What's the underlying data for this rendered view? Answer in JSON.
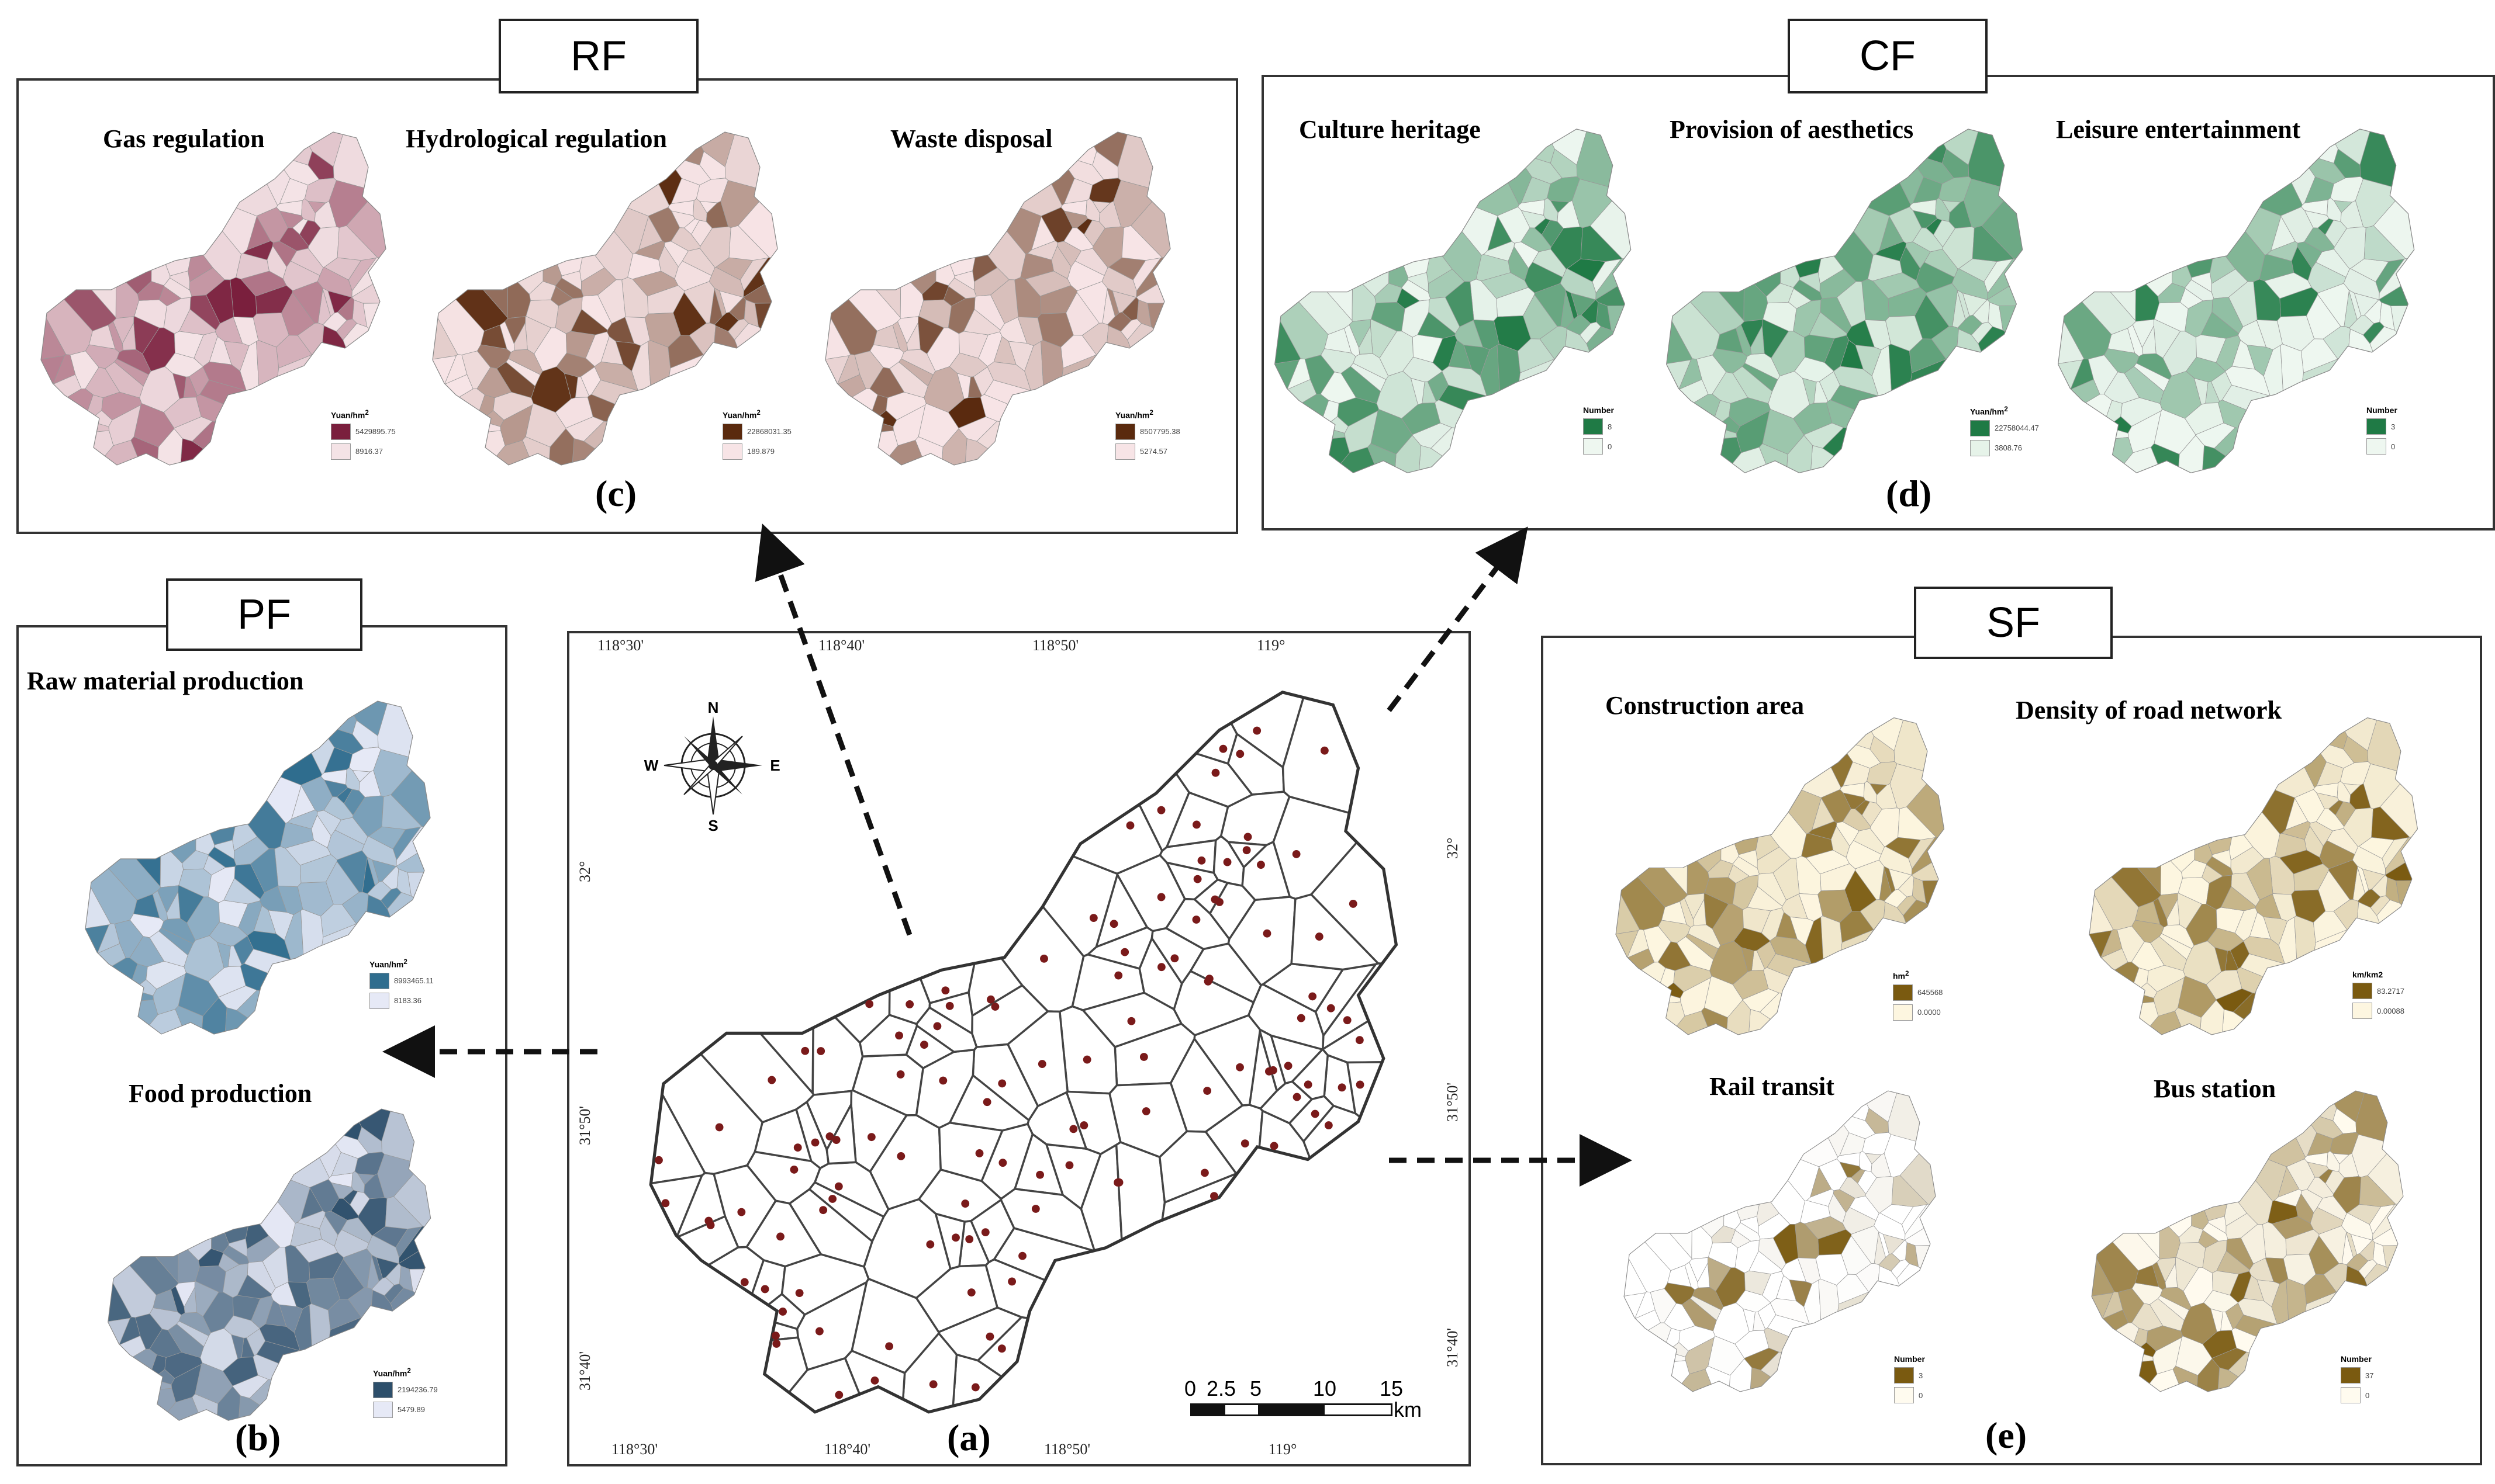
{
  "panels": {
    "rf": {
      "tag": "RF",
      "letter": "(c)",
      "maps": [
        {
          "title": "Gas regulation",
          "legend_title": "Yuan/hm",
          "legend_sup": "2",
          "legend_hi": "5429895.75",
          "legend_lo": "8916.37",
          "color": "#7a1f3d",
          "light": "#f4e3e6"
        },
        {
          "title": "Hydrological regulation",
          "legend_title": "Yuan/hm",
          "legend_sup": "2",
          "legend_hi": "22868031.35",
          "legend_lo": "189.879",
          "color": "#5a2a0e",
          "light": "#f7e4e6"
        },
        {
          "title": "Waste disposal",
          "legend_title": "Yuan/hm",
          "legend_sup": "2",
          "legend_hi": "8507795.38",
          "legend_lo": "5274.57",
          "color": "#5a2a0e",
          "light": "#f7e4e6"
        }
      ]
    },
    "cf": {
      "tag": "CF",
      "letter": "(d)",
      "maps": [
        {
          "title": "Culture heritage",
          "legend_title": "Number",
          "legend_sup": "",
          "legend_hi": "8",
          "legend_lo": "0",
          "color": "#1f7a45",
          "light": "#eef7f0"
        },
        {
          "title": "Provision of aesthetics",
          "legend_title": "Yuan/hm",
          "legend_sup": "2",
          "legend_hi": "22758044.47",
          "legend_lo": "3808.76",
          "color": "#1f7a45",
          "light": "#e6f3e9"
        },
        {
          "title": "Leisure  entertainment",
          "legend_title": "Number",
          "legend_sup": "",
          "legend_hi": "3",
          "legend_lo": "0",
          "color": "#1f7a45",
          "light": "#eef7f0"
        }
      ]
    },
    "pf": {
      "tag": "PF",
      "letter": "(b)",
      "maps": [
        {
          "title": "Raw material production",
          "legend_title": "Yuan/hm",
          "legend_sup": "2",
          "legend_hi": "8993465.11",
          "legend_lo": "8183.36",
          "color": "#2f6d8e",
          "light": "#e6e9f6"
        },
        {
          "title": "Food production",
          "legend_title": "Yuan/hm",
          "legend_sup": "2",
          "legend_hi": "2194236.79",
          "legend_lo": "5479.89",
          "color": "#2d4f6b",
          "light": "#e6e9f6"
        }
      ]
    },
    "sf": {
      "tag": "SF",
      "letter": "(e)",
      "maps": [
        {
          "title": "Construction area",
          "legend_title": "hm",
          "legend_sup": "2",
          "legend_hi": "645568",
          "legend_lo": "0.0000",
          "color": "#7a5a10",
          "light": "#fdf6e0"
        },
        {
          "title": "Density of road network",
          "legend_title": "km/km2",
          "legend_sup": "",
          "legend_hi": "83.2717",
          "legend_lo": "0.00088",
          "color": "#7a5a10",
          "light": "#fdf6e0"
        },
        {
          "title": "Rail transit",
          "legend_title": "Number",
          "legend_sup": "",
          "legend_hi": "3",
          "legend_lo": "0",
          "color": "#7a5a10",
          "light": "#ffffff"
        },
        {
          "title": "Bus station",
          "legend_title": "Number",
          "legend_sup": "",
          "legend_hi": "37",
          "legend_lo": "0",
          "color": "#7a5a10",
          "light": "#fffbef"
        }
      ]
    },
    "main": {
      "letter": "(a)",
      "coords_top": [
        "118°30'",
        "118°40'",
        "118°50'",
        "119°"
      ],
      "coords_bottom": [
        "118°30'",
        "118°40'",
        "118°50'",
        "119°"
      ],
      "coords_left": [
        "32°",
        "31°50'",
        "31°40'"
      ],
      "coords_right": [
        "32°",
        "31°50'",
        "31°40'"
      ],
      "compass": {
        "n": "N",
        "s": "S",
        "e": "E",
        "w": "W"
      },
      "scale": {
        "ticks": [
          "0",
          "2.5",
          "5",
          "10",
          "15"
        ],
        "unit": "km"
      }
    }
  },
  "colors": {
    "point": "#7a1a1a",
    "border": "#333333"
  }
}
